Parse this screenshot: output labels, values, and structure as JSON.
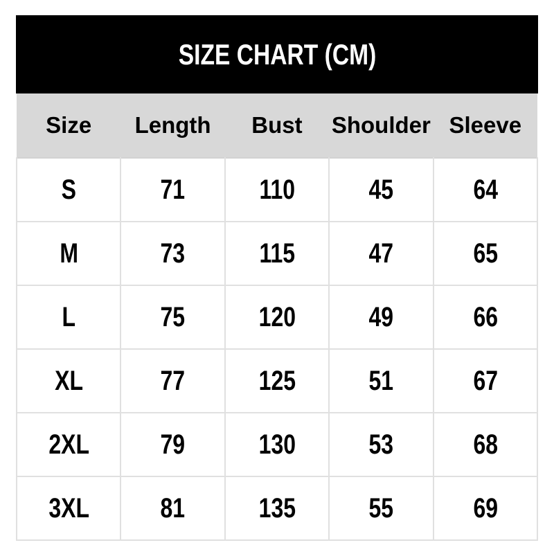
{
  "chart_data": {
    "type": "table",
    "title": "SIZE CHART (CM)",
    "columns": [
      "Size",
      "Length",
      "Bust",
      "Shoulder",
      "Sleeve"
    ],
    "rows": [
      [
        "S",
        "71",
        "110",
        "45",
        "64"
      ],
      [
        "M",
        "73",
        "115",
        "47",
        "65"
      ],
      [
        "L",
        "75",
        "120",
        "49",
        "66"
      ],
      [
        "XL",
        "77",
        "125",
        "51",
        "67"
      ],
      [
        "2XL",
        "79",
        "130",
        "53",
        "68"
      ],
      [
        "3XL",
        "81",
        "135",
        "55",
        "69"
      ]
    ]
  },
  "colors": {
    "page_bg": "#ffffff",
    "title_bar_bg": "#000000",
    "title_text": "#ffffff",
    "header_row_bg": "#d8d8d8",
    "cell_bg": "#ffffff",
    "cell_border": "#e0e0e0",
    "text": "#000000"
  }
}
